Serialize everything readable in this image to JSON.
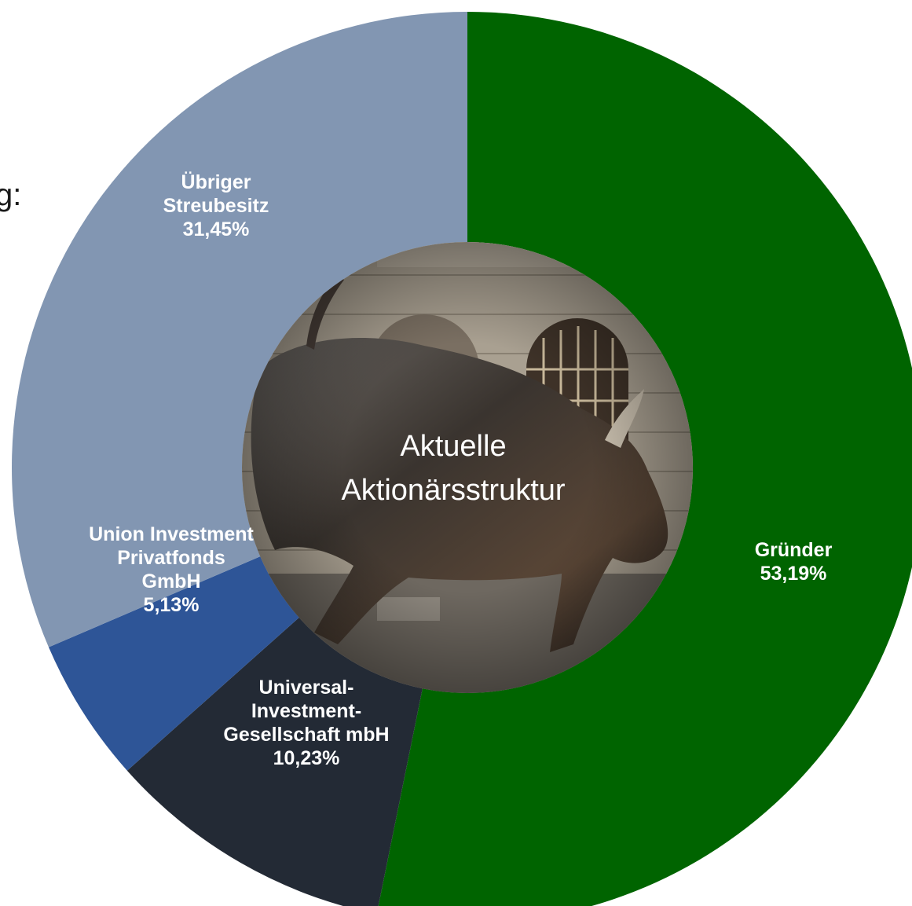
{
  "page": {
    "partial_text": "g:"
  },
  "chart_data": {
    "type": "pie",
    "donut": true,
    "center_label_lines": [
      "Aktuelle",
      "Aktionärsstruktur"
    ],
    "center_image": "bronze-charging-bull-photo",
    "slices": [
      {
        "name": "Gründer",
        "label_lines": [
          "Gründer"
        ],
        "value": 53.19,
        "value_label": "53,19%",
        "color": "#006400"
      },
      {
        "name": "Universal-Investment-Gesellschaft mbH",
        "label_lines": [
          "Universal-",
          "Investment-",
          "Gesellschaft mbH"
        ],
        "value": 10.23,
        "value_label": "10,23%",
        "color": "#232a35"
      },
      {
        "name": "Union Investment Privatfonds GmbH",
        "label_lines": [
          "Union Investment",
          "Privatfonds",
          "GmbH"
        ],
        "value": 5.13,
        "value_label": "5,13%",
        "color": "#2e5597"
      },
      {
        "name": "Übriger Streubesitz",
        "label_lines": [
          "Übriger",
          "Streubesitz"
        ],
        "value": 31.45,
        "value_label": "31,45%",
        "color": "#8296b2"
      }
    ],
    "legend": "none"
  }
}
